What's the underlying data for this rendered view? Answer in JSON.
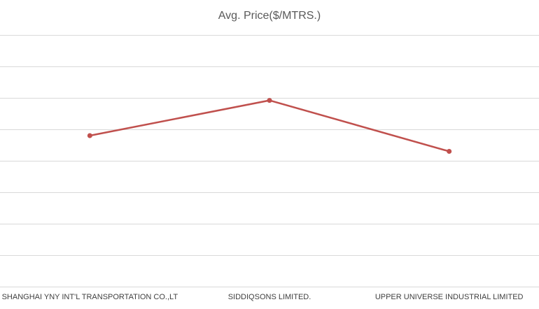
{
  "chart_data": {
    "type": "line",
    "title": "Avg. Price($/MTRS.)",
    "categories": [
      "SHANGHAI YNY INT'L TRANSPORTATION CO.,LT",
      "SIDDIQSONS LIMITED.",
      "UPPER UNIVERSE INDUSTRIAL LIMITED"
    ],
    "values": [
      4.8,
      5.92,
      4.3
    ],
    "ylim": [
      0,
      8
    ],
    "grid": true,
    "legend": "none",
    "color": "#c0504d"
  }
}
